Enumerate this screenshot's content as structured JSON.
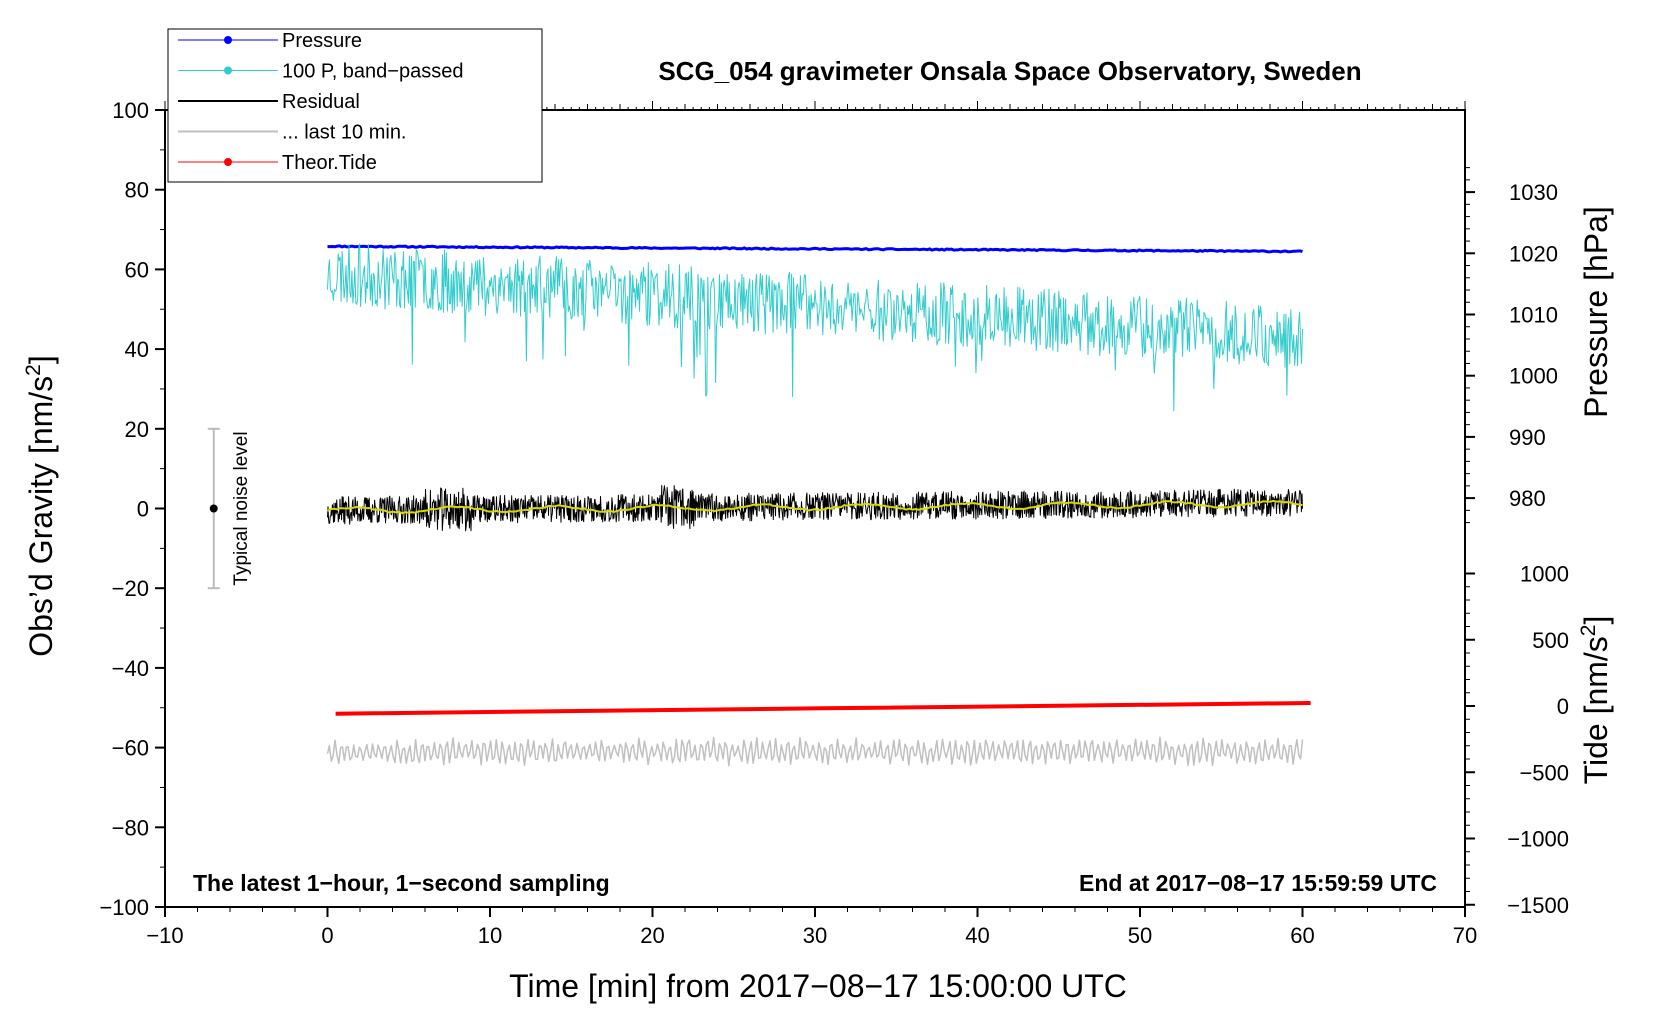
{
  "chart_data": {
    "type": "line",
    "title": "SCG_054 gravimeter Onsala Space Observatory, Sweden",
    "xlabel": "Time [min] from 2017−08−17 15:00:00 UTC",
    "xlim": [
      -10,
      70
    ],
    "x_ticks": [
      -10,
      0,
      10,
      20,
      30,
      40,
      50,
      60,
      70
    ],
    "x_tick_labels": [
      "−10",
      "0",
      "10",
      "20",
      "30",
      "40",
      "50",
      "60",
      "70"
    ],
    "left_axis": {
      "label": "Obs’d Gravity [nm/s",
      "label_sup": "2",
      "label_end": "]",
      "ylim": [
        -100,
        100
      ],
      "ticks": [
        100,
        80,
        60,
        40,
        20,
        0,
        -20,
        -40,
        -60,
        -80,
        -100
      ],
      "tick_labels": [
        "100",
        "80",
        "60",
        "40",
        "20",
        "0",
        "−20",
        "−40",
        "−60",
        "−80",
        "−100"
      ]
    },
    "pressure_axis": {
      "label": "Pressure [hPa]",
      "ticks": [
        1030,
        1020,
        1010,
        1000,
        990,
        980
      ],
      "tick_labels": [
        "1030",
        "1020",
        "1010",
        "1000",
        "990",
        "980"
      ]
    },
    "tide_axis": {
      "label": "Tide [nm/s",
      "label_sup": "2",
      "label_end": "]",
      "ticks": [
        1000,
        500,
        0,
        -500,
        -1000,
        -1500
      ],
      "tick_labels": [
        "1000",
        "500",
        "0",
        "−500",
        "−1000",
        "−1500"
      ]
    },
    "legend": {
      "placement": "top-left",
      "entries": [
        {
          "label": "Pressure",
          "color": "#0000ff",
          "marker": true
        },
        {
          "label": "100 P, band−passed",
          "color": "#33cccc",
          "marker": true
        },
        {
          "label": "Residual",
          "color": "#000000",
          "marker": false
        },
        {
          "label": "... last 10 min.",
          "color": "#c0c0c0",
          "marker": false
        },
        {
          "label": "Theor.Tide",
          "color": "#ff0000",
          "marker": true
        }
      ]
    },
    "series": [
      {
        "name": "Pressure",
        "color": "#0000ff",
        "x_range": [
          0,
          60
        ],
        "y_start": 65.8,
        "y_end": 64.5,
        "noise": 0.3,
        "seed": 11
      },
      {
        "name": "100 P, band−passed",
        "color": "#33cccc",
        "x_range": [
          0,
          60
        ],
        "y_start": 59,
        "y_end": 43,
        "noise": 8,
        "seed": 23
      },
      {
        "name": "Residual",
        "color": "#000000",
        "x_range": [
          0,
          60
        ],
        "y_start": -0.5,
        "y_end": 1.5,
        "noise": 3.5,
        "seed": 37
      },
      {
        "name": "Residual (smoothed)",
        "color": "#d8d800",
        "x_range": [
          0,
          60
        ],
        "y_start": -0.5,
        "y_end": 1.2,
        "noise": 0.7,
        "seed": 41
      },
      {
        "name": "... last 10 min.",
        "color": "#c0c0c0",
        "x_range": [
          0,
          60
        ],
        "y_start": -61,
        "y_end": -61,
        "noise": 2.5,
        "seed": 53
      },
      {
        "name": "Theor.Tide",
        "color": "#ff0000",
        "x_range": [
          0.5,
          60.5
        ],
        "y_start": -51.5,
        "y_end": -48.8,
        "noise": 0,
        "seed": 67
      }
    ],
    "noise_bar": {
      "x": -7,
      "y_center": 0,
      "y_low": -20,
      "y_high": 20,
      "label": "Typical noise level"
    },
    "annotation_left": "The latest 1−hour, 1−second sampling",
    "annotation_right": "End at 2017−08−17 15:59:59 UTC"
  }
}
